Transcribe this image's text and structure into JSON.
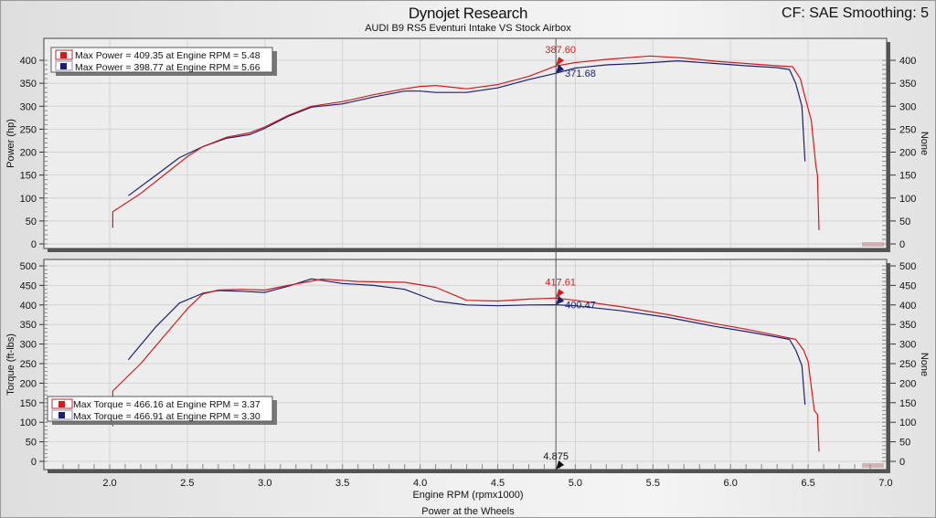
{
  "header": {
    "title": "Dynojet Research",
    "subtitle": "AUDI B9 RS5 Eventuri Intake VS Stock Airbox",
    "cf_label": "CF: SAE Smoothing: 5"
  },
  "footer": {
    "xlabel": "Engine RPM (rpmx1000)",
    "caption": "Power at the Wheels"
  },
  "colors": {
    "run1": "#d21c1c",
    "run2": "#1c2070",
    "cursor": "#555555",
    "grid": "#d4d4d4"
  },
  "cursor": {
    "rpm": 4.875,
    "label": "4.875"
  },
  "chart_data": [
    {
      "type": "line",
      "title": "Power",
      "xlabel": "Engine RPM (rpmx1000)",
      "ylabel": "Power (hp)",
      "ylabel_right": "None",
      "xlim": [
        1.58,
        7.0
      ],
      "ylim": [
        0,
        440
      ],
      "x_ticks": [
        "2.0",
        "2.5",
        "3.0",
        "3.5",
        "4.0",
        "4.5",
        "5.0",
        "5.5",
        "6.0",
        "6.5",
        "7.0"
      ],
      "y_ticks": [
        0,
        50,
        100,
        150,
        200,
        250,
        300,
        350,
        400
      ],
      "grid": true,
      "legend": [
        {
          "label": "Max Power = 409.35 at Engine RPM = 5.48",
          "color": "#d21c1c"
        },
        {
          "label": "Max Power = 398.77 at Engine RPM = 5.66",
          "color": "#1c2070"
        }
      ],
      "cursor_values": [
        {
          "value": "387.60",
          "color": "#d21c1c"
        },
        {
          "value": "371.68",
          "color": "#1c2070"
        }
      ],
      "series": [
        {
          "name": "Eventuri Intake",
          "color": "#d21c1c",
          "x": [
            2.02,
            2.02,
            2.2,
            2.35,
            2.5,
            2.6,
            2.75,
            2.9,
            3.0,
            3.15,
            3.3,
            3.5,
            3.7,
            3.9,
            4.0,
            4.1,
            4.3,
            4.5,
            4.7,
            4.875,
            5.0,
            5.2,
            5.48,
            5.7,
            5.9,
            6.1,
            6.3,
            6.4,
            6.45,
            6.48,
            6.52,
            6.55,
            6.56,
            6.57
          ],
          "y": [
            35,
            70,
            110,
            150,
            190,
            212,
            232,
            242,
            255,
            280,
            300,
            310,
            325,
            338,
            343,
            345,
            338,
            347,
            365,
            387.6,
            395,
            402,
            409.35,
            405,
            398,
            393,
            388,
            386,
            360,
            320,
            270,
            170,
            150,
            30
          ]
        },
        {
          "name": "Stock Airbox",
          "color": "#1c2070",
          "x": [
            2.12,
            2.3,
            2.45,
            2.6,
            2.75,
            2.9,
            3.0,
            3.15,
            3.3,
            3.5,
            3.7,
            3.9,
            4.0,
            4.1,
            4.3,
            4.5,
            4.7,
            4.875,
            5.0,
            5.2,
            5.4,
            5.66,
            5.9,
            6.1,
            6.3,
            6.38,
            6.42,
            6.46,
            6.48
          ],
          "y": [
            105,
            150,
            188,
            212,
            230,
            238,
            252,
            278,
            298,
            305,
            320,
            333,
            333,
            330,
            330,
            340,
            358,
            371.68,
            383,
            390,
            393,
            398.77,
            393,
            388,
            384,
            380,
            350,
            300,
            180
          ]
        }
      ]
    },
    {
      "type": "line",
      "title": "Torque",
      "xlabel": "Engine RPM (rpmx1000)",
      "ylabel": "Torque (ft-lbs)",
      "ylabel_right": "None",
      "xlim": [
        1.58,
        7.0
      ],
      "ylim": [
        -15,
        510
      ],
      "x_ticks": [
        "2.0",
        "2.5",
        "3.0",
        "3.5",
        "4.0",
        "4.5",
        "5.0",
        "5.5",
        "6.0",
        "6.5",
        "7.0"
      ],
      "y_ticks": [
        0,
        50,
        100,
        150,
        200,
        250,
        300,
        350,
        400,
        450,
        500
      ],
      "grid": true,
      "legend": [
        {
          "label": "Max Torque = 466.16 at Engine RPM = 3.37",
          "color": "#d21c1c"
        },
        {
          "label": "Max Torque = 466.91 at Engine RPM = 3.30",
          "color": "#1c2070"
        }
      ],
      "cursor_values": [
        {
          "value": "417.61",
          "color": "#d21c1c"
        },
        {
          "value": "400.47",
          "color": "#1c2070"
        }
      ],
      "series": [
        {
          "name": "Eventuri Intake",
          "color": "#d21c1c",
          "x": [
            2.02,
            2.02,
            2.2,
            2.35,
            2.5,
            2.6,
            2.7,
            2.85,
            3.0,
            3.15,
            3.37,
            3.6,
            3.9,
            4.1,
            4.3,
            4.5,
            4.7,
            4.875,
            5.0,
            5.3,
            5.6,
            5.9,
            6.1,
            6.3,
            6.42,
            6.47,
            6.5,
            6.54,
            6.56,
            6.57
          ],
          "y": [
            90,
            180,
            250,
            320,
            390,
            428,
            438,
            440,
            438,
            450,
            466.16,
            460,
            458,
            445,
            412,
            410,
            415,
            417.61,
            412,
            395,
            375,
            352,
            338,
            322,
            312,
            285,
            255,
            130,
            120,
            25
          ]
        },
        {
          "name": "Stock Airbox",
          "color": "#1c2070",
          "x": [
            2.12,
            2.3,
            2.45,
            2.6,
            2.7,
            2.85,
            3.0,
            3.15,
            3.3,
            3.5,
            3.7,
            3.9,
            4.1,
            4.3,
            4.5,
            4.7,
            4.875,
            5.0,
            5.3,
            5.6,
            5.9,
            6.1,
            6.3,
            6.38,
            6.42,
            6.46,
            6.48
          ],
          "y": [
            260,
            345,
            405,
            430,
            437,
            435,
            432,
            448,
            466.91,
            455,
            450,
            440,
            410,
            400,
            398,
            400,
            400.47,
            398,
            385,
            368,
            345,
            332,
            318,
            312,
            285,
            245,
            145
          ]
        }
      ]
    }
  ]
}
